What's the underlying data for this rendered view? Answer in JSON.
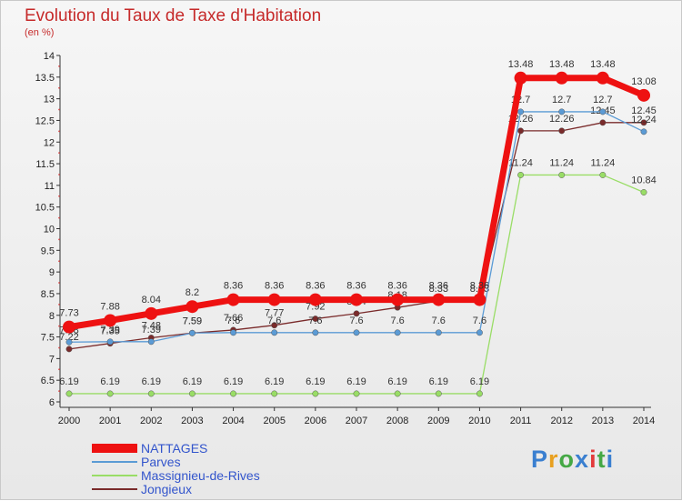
{
  "title": "Evolution du Taux de Taxe d'Habitation",
  "unit": "(en %)",
  "logo": "Proxiti",
  "chart_data": {
    "type": "line",
    "x": [
      "2000",
      "2001",
      "2002",
      "2003",
      "2004",
      "2005",
      "2006",
      "2007",
      "2008",
      "2009",
      "2010",
      "2011",
      "2012",
      "2013",
      "2014"
    ],
    "ylim": [
      6,
      14
    ],
    "yticks": [
      "6",
      "6.5",
      "7",
      "7.5",
      "8",
      "8.5",
      "9",
      "9.5",
      "10",
      "10.5",
      "11",
      "11.5",
      "12",
      "12.5",
      "13",
      "13.5",
      "14"
    ],
    "grid": false,
    "legend_position": "bottom-left",
    "series": [
      {
        "name": "Jongieux",
        "color": "#7a2b2b",
        "values": [
          7.22,
          7.35,
          7.48,
          7.59,
          7.66,
          7.77,
          7.92,
          8.04,
          8.18,
          8.33,
          8.33,
          12.26,
          12.26,
          12.45,
          12.45
        ]
      },
      {
        "name": "Massignieu-de-Rives",
        "color": "#99dd66",
        "values": [
          6.19,
          6.19,
          6.19,
          6.19,
          6.19,
          6.19,
          6.19,
          6.19,
          6.19,
          6.19,
          6.19,
          11.24,
          11.24,
          11.24,
          10.84
        ]
      },
      {
        "name": "Parves",
        "color": "#5b9bd5",
        "values": [
          7.38,
          7.39,
          7.39,
          7.59,
          7.6,
          7.6,
          7.6,
          7.6,
          7.6,
          7.6,
          7.6,
          12.7,
          12.7,
          12.7,
          12.24
        ]
      },
      {
        "name": "NATTAGES",
        "color": "#ee1111",
        "values": [
          7.73,
          7.88,
          8.04,
          8.2,
          8.36,
          8.36,
          8.36,
          8.36,
          8.36,
          8.36,
          8.36,
          13.48,
          13.48,
          13.48,
          13.08
        ]
      }
    ]
  }
}
